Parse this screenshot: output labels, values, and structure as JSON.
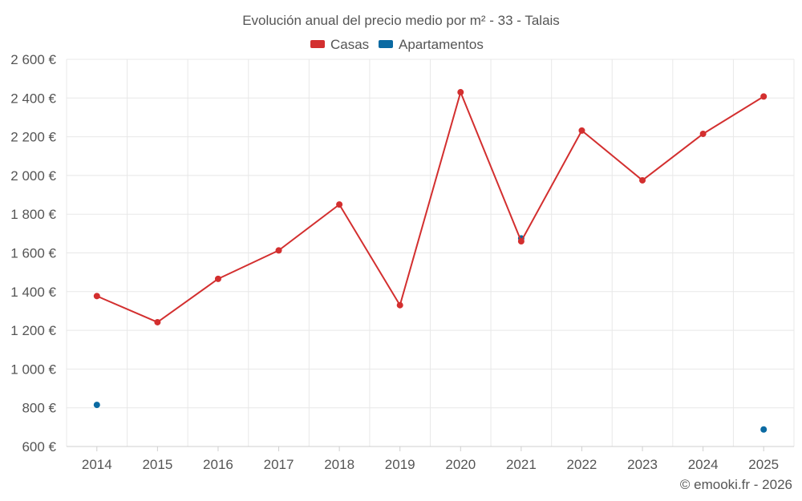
{
  "chart_data": {
    "type": "line",
    "title": "Evolución anual del precio medio por m² - 33 - Talais",
    "categories": [
      "2014",
      "2015",
      "2016",
      "2017",
      "2018",
      "2019",
      "2020",
      "2021",
      "2022",
      "2023",
      "2024",
      "2025"
    ],
    "ylim": [
      600,
      2600
    ],
    "yticks": [
      600,
      800,
      1000,
      1200,
      1400,
      1600,
      1800,
      2000,
      2200,
      2400,
      2600
    ],
    "ytick_labels": [
      "600 €",
      "800 €",
      "1 000 €",
      "1 200 €",
      "1 400 €",
      "1 600 €",
      "1 800 €",
      "2 000 €",
      "2 200 €",
      "2 400 €",
      "2 600 €"
    ],
    "grid": true,
    "legend_position": "top-center",
    "series": [
      {
        "name": "Casas",
        "color": "#d32f2f",
        "values": [
          1377,
          1242,
          1466,
          1613,
          1850,
          1330,
          2430,
          1660,
          2232,
          1975,
          2215,
          2408
        ]
      },
      {
        "name": "Apartamentos",
        "color": "#0b6aa2",
        "values": [
          815,
          null,
          null,
          null,
          null,
          null,
          null,
          1675,
          null,
          null,
          null,
          688
        ]
      }
    ],
    "credit": "© emooki.fr - 2026"
  }
}
